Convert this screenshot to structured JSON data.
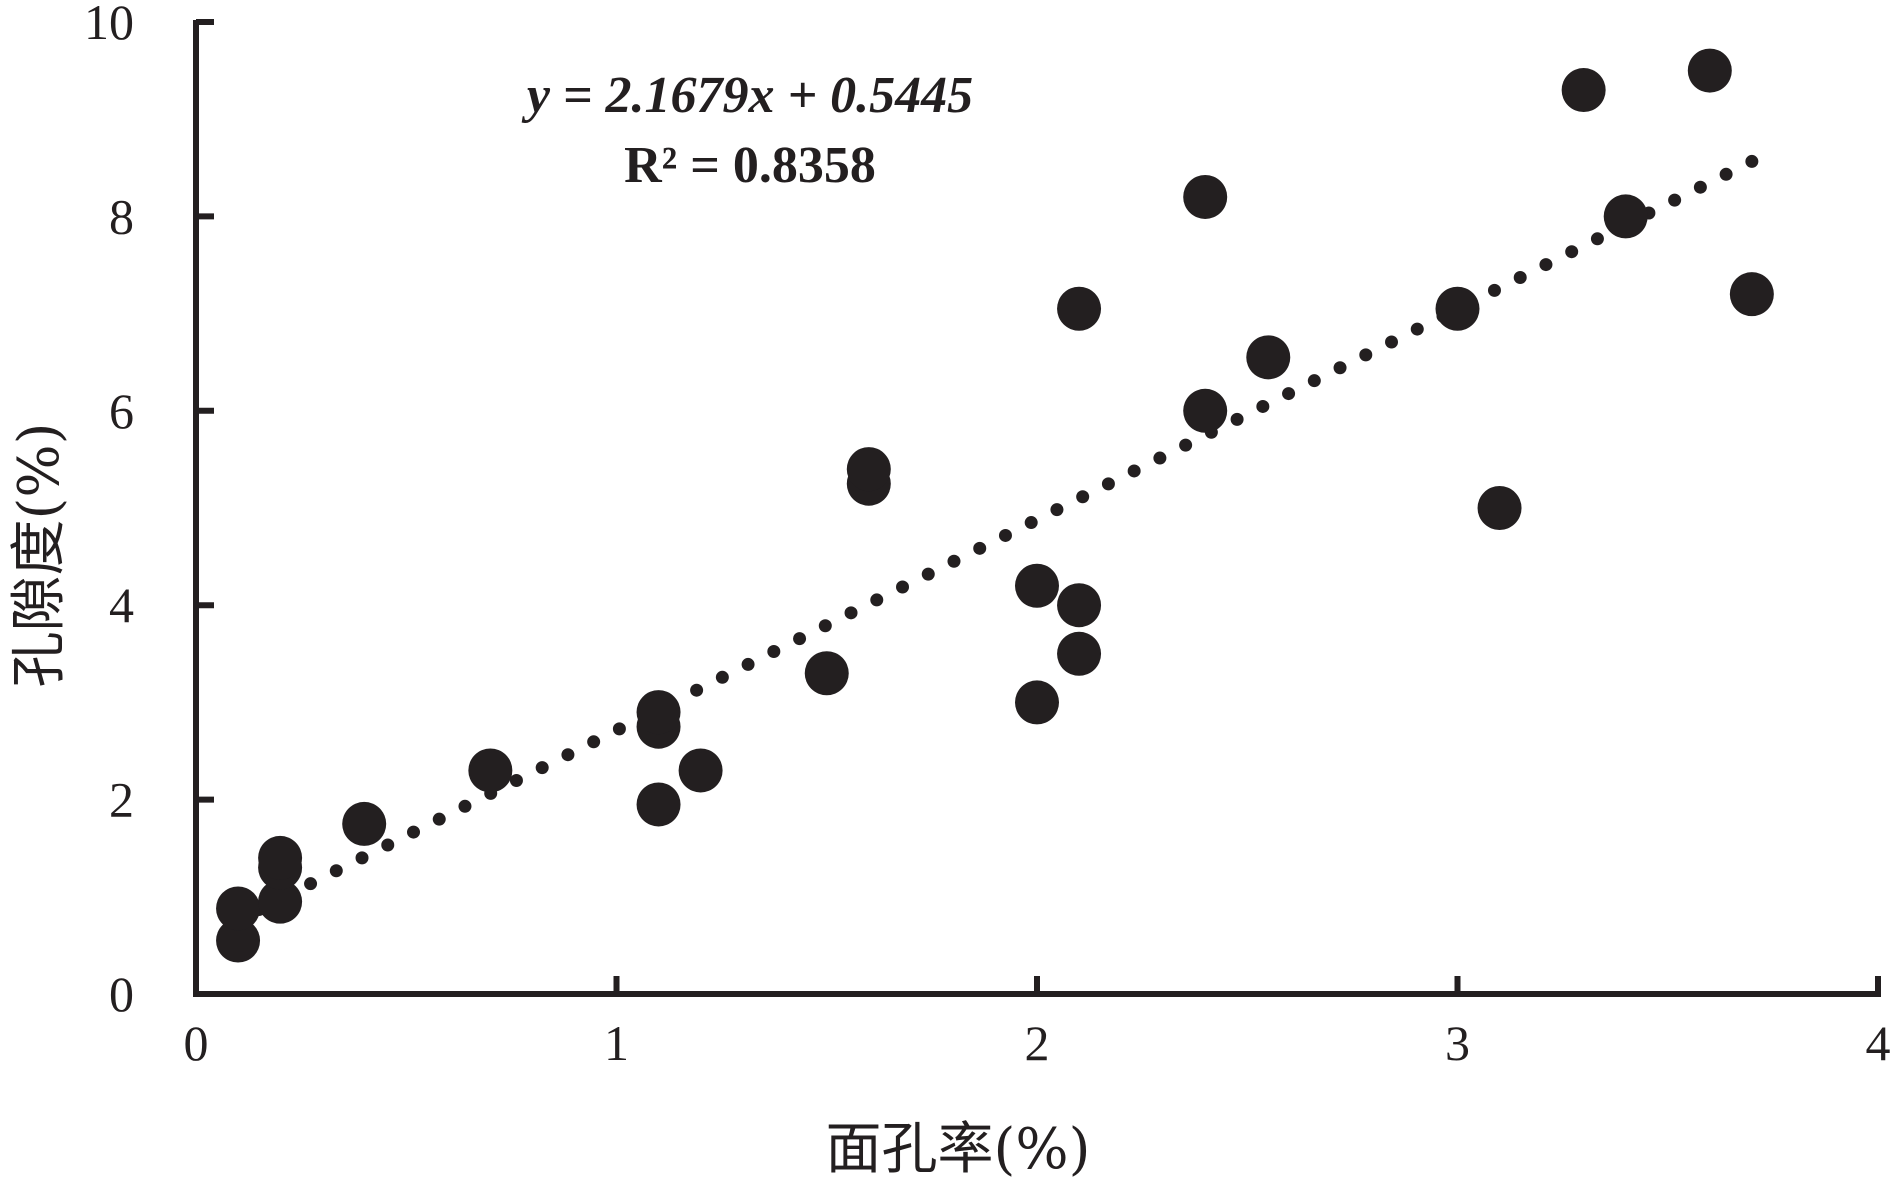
{
  "chart_data": {
    "type": "scatter",
    "xlabel": "面孔率(%)",
    "ylabel": "孔隙度(%)",
    "xlim": [
      0,
      4
    ],
    "ylim": [
      0,
      10
    ],
    "x_ticks": [
      "0",
      "1",
      "2",
      "3",
      "4"
    ],
    "y_ticks": [
      "0",
      "2",
      "4",
      "6",
      "8",
      "10"
    ],
    "grid": false,
    "annotations": {
      "equation": "y = 2.1679x + 0.5445",
      "r_squared": "R² = 0.8358"
    },
    "trendline": {
      "type": "linear",
      "slope": 2.1679,
      "intercept": 0.5445,
      "x_range": [
        0.15,
        3.7
      ],
      "style": "dotted"
    },
    "points": [
      {
        "x": 0.1,
        "y": 0.55
      },
      {
        "x": 0.1,
        "y": 0.88
      },
      {
        "x": 0.2,
        "y": 0.95
      },
      {
        "x": 0.2,
        "y": 1.3
      },
      {
        "x": 0.2,
        "y": 1.4
      },
      {
        "x": 0.4,
        "y": 1.75
      },
      {
        "x": 0.7,
        "y": 2.3
      },
      {
        "x": 1.1,
        "y": 1.95
      },
      {
        "x": 1.1,
        "y": 2.75
      },
      {
        "x": 1.1,
        "y": 2.9
      },
      {
        "x": 1.2,
        "y": 2.3
      },
      {
        "x": 1.5,
        "y": 3.3
      },
      {
        "x": 1.6,
        "y": 5.25
      },
      {
        "x": 1.6,
        "y": 5.4
      },
      {
        "x": 2.0,
        "y": 3.0
      },
      {
        "x": 2.0,
        "y": 4.2
      },
      {
        "x": 2.1,
        "y": 3.5
      },
      {
        "x": 2.1,
        "y": 4.0
      },
      {
        "x": 2.1,
        "y": 7.05
      },
      {
        "x": 2.4,
        "y": 6.0
      },
      {
        "x": 2.4,
        "y": 8.2
      },
      {
        "x": 2.55,
        "y": 6.55
      },
      {
        "x": 3.0,
        "y": 7.05
      },
      {
        "x": 3.1,
        "y": 5.0
      },
      {
        "x": 3.3,
        "y": 9.3
      },
      {
        "x": 3.4,
        "y": 8.0
      },
      {
        "x": 3.6,
        "y": 9.5
      },
      {
        "x": 3.7,
        "y": 7.2
      }
    ]
  },
  "colors": {
    "ink": "#231f20"
  }
}
